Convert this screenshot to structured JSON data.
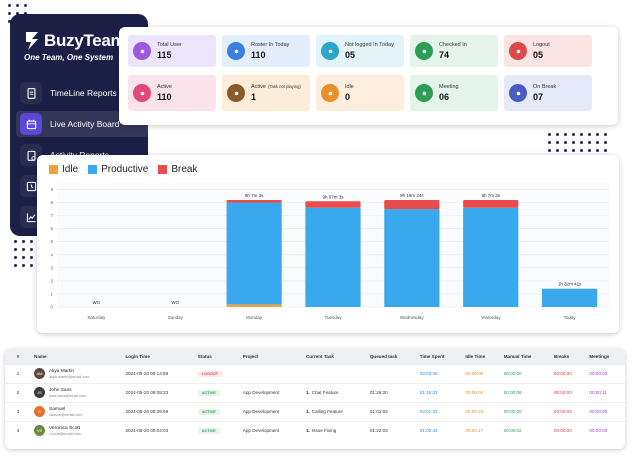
{
  "sidebar": {
    "brand": "BuzyTeam",
    "tagline": "One Team, One System",
    "items": [
      {
        "label": "TimeLine Reports",
        "icon": "document-icon",
        "active": false
      },
      {
        "label": "Live Activity Board",
        "icon": "calendar-icon",
        "active": true
      },
      {
        "label": "Activity Reports",
        "icon": "clipboard-icon",
        "active": false
      },
      {
        "label": "",
        "icon": "clock-icon",
        "active": false
      },
      {
        "label": "",
        "icon": "trend-chart-icon",
        "active": false
      }
    ]
  },
  "stats": [
    {
      "label": "Total User",
      "value": "115",
      "bg": "#ece5fb",
      "iconBg": "#9b59e0",
      "icon": "users-icon"
    },
    {
      "label": "Roster In Today",
      "value": "110",
      "bg": "#e3eefc",
      "iconBg": "#3b7fe0",
      "icon": "roster-icon"
    },
    {
      "label": "Not logged In Today",
      "value": "05",
      "bg": "#e2f4f9",
      "iconBg": "#2aa6c9",
      "icon": "user-x-icon"
    },
    {
      "label": "Checked In",
      "value": "74",
      "bg": "#e4f4ea",
      "iconBg": "#2e9e57",
      "icon": "check-in-icon"
    },
    {
      "label": "Logout",
      "value": "05",
      "bg": "#fbe4e4",
      "iconBg": "#e04848",
      "icon": "logout-icon"
    },
    {
      "label": "Active",
      "value": "110",
      "bg": "#fbe3ec",
      "iconBg": "#e2487a",
      "icon": "active-user-icon"
    },
    {
      "label": "Active",
      "sublabel": "(Task not playing)",
      "value": "1",
      "bg": "#fcecd9",
      "iconBg": "#8a5a2c",
      "icon": "paused-user-icon"
    },
    {
      "label": "Idle",
      "value": "0",
      "bg": "#fdeede",
      "iconBg": "#e8902a",
      "icon": "idle-icon"
    },
    {
      "label": "Meeting",
      "value": "06",
      "bg": "#e4f4ea",
      "iconBg": "#2e9e57",
      "icon": "meeting-icon"
    },
    {
      "label": "On Break",
      "value": "07",
      "bg": "#e6e9f7",
      "iconBg": "#4a5bc4",
      "icon": "break-icon"
    }
  ],
  "chart_data": {
    "type": "bar",
    "stacked": true,
    "legend_position": "top-left",
    "categories": [
      "Saturday",
      "Sunday",
      "Monday",
      "Tuesday",
      "Wednesday",
      "Yesterday",
      "Today"
    ],
    "bar_labels": [
      "WO",
      "WO",
      "9h 7m 3s",
      "9h 57m 3s",
      "9h 16m 24s",
      "9h 7m 3s",
      "1h 32m 41s"
    ],
    "series": [
      {
        "name": "Idle",
        "color": "#f0a13c",
        "values": [
          0,
          0,
          0.2,
          0,
          0,
          0,
          0
        ]
      },
      {
        "name": "Productive",
        "color": "#3aa8ec",
        "values": [
          0,
          0,
          7.8,
          7.6,
          7.5,
          7.6,
          1.4
        ]
      },
      {
        "name": "Break",
        "color": "#e84c4c",
        "values": [
          0,
          0,
          0.2,
          0.5,
          0.7,
          0.6,
          0
        ]
      }
    ],
    "y_ticks": [
      "0",
      "1",
      "2",
      "3",
      "4",
      "5",
      "6",
      "7",
      "8",
      "9"
    ],
    "ylim": [
      0,
      9.5
    ],
    "grid": true
  },
  "table": {
    "headers": [
      "#",
      "Name",
      "Login Time",
      "Status",
      "Project",
      "Current Task",
      "Queued task",
      "Time Spent",
      "Idle Time",
      "Manual Time",
      "Breaks",
      "Meetings"
    ],
    "rows": [
      {
        "num": "1",
        "name": "Aliya Martin",
        "email": "aliya.martin@email.com",
        "avatarColor": "#5b4a3a",
        "initials": "AM",
        "login": "2024-05-20 09:14:59",
        "status": "LOGOUT",
        "statusType": "out",
        "project": "",
        "taskNum": "",
        "task": "",
        "queued": "",
        "spent": "03:03:30",
        "idle": "00:00:00",
        "manual": "00:00:00",
        "breaks": "00:00:00",
        "meetings": "00:00:00"
      },
      {
        "num": "2",
        "name": "John Sans",
        "email": "john.sans@email.com",
        "avatarColor": "#3a3a3a",
        "initials": "JS",
        "login": "2024-05-20 09:08:23",
        "status": "ACTIVE",
        "statusType": "act",
        "project": "App Development",
        "taskNum": "1.",
        "task": "Chat Feature",
        "queued": "01:26:20",
        "spent": "01:16:33",
        "idle": "00:00:04",
        "manual": "00:00:06",
        "breaks": "00:00:00",
        "meetings": "00:00:11"
      },
      {
        "num": "3",
        "name": "Samuel",
        "email": "samuel@email.com",
        "avatarColor": "#e8702a",
        "initials": "S",
        "login": "2024-05-20 09:39:69",
        "status": "ACTIVE",
        "statusType": "act",
        "project": "App Development",
        "taskNum": "1.",
        "task": "Calling Feature",
        "queued": "01:01:03",
        "spent": "03:01:33",
        "idle": "00:00:23",
        "manual": "00:00:00",
        "breaks": "00:00:00",
        "meetings": "00:00:00"
      },
      {
        "num": "4",
        "name": "Veronica Scott",
        "email": "v.scott@email.com",
        "avatarColor": "#6b8a3a",
        "initials": "VS",
        "login": "2024-05-20 09:04:03",
        "status": "ACTIVE",
        "statusType": "act",
        "project": "App Development",
        "taskNum": "1.",
        "task": "Issue Fixing",
        "queued": "01:22:03",
        "spent": "01:02:34",
        "idle": "00:00:17",
        "manual": "00:00:02",
        "breaks": "00:00:00",
        "meetings": "00:00:00"
      }
    ]
  }
}
